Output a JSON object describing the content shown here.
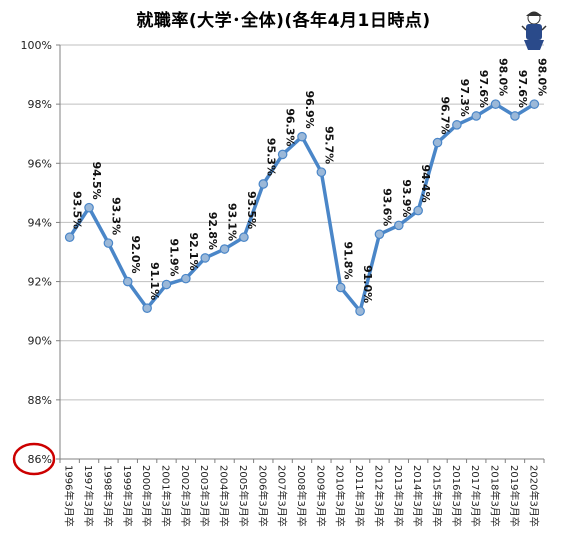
{
  "chart_data": {
    "type": "line",
    "title": "就職率(大学･全体)(各年4月1日時点)",
    "xlabel": "",
    "ylabel": "",
    "ylim": [
      86,
      100
    ],
    "ytick_step": 2,
    "ytick_labels": [
      "86%",
      "88%",
      "90%",
      "92%",
      "94%",
      "96%",
      "98%",
      "100%"
    ],
    "grid": true,
    "legend": "none",
    "axis_break_highlight": "86%",
    "colors": {
      "line": "#4a86c8",
      "marker_fill": "#9bb8d8",
      "marker_stroke": "#4a86c8",
      "highlight": "#cc0000"
    },
    "categories": [
      "1996年3月卒",
      "1997年3月卒",
      "1998年3月卒",
      "1999年3月卒",
      "2000年3月卒",
      "2001年3月卒",
      "2002年3月卒",
      "2003年3月卒",
      "2004年3月卒",
      "2005年3月卒",
      "2006年3月卒",
      "2007年3月卒",
      "2008年3月卒",
      "2009年3月卒",
      "2010年3月卒",
      "2011年3月卒",
      "2012年3月卒",
      "2013年3月卒",
      "2014年3月卒",
      "2015年3月卒",
      "2016年3月卒",
      "2017年3月卒",
      "2018年3月卒",
      "2019年3月卒",
      "2020年3月卒"
    ],
    "values": [
      93.5,
      94.5,
      93.3,
      92.0,
      91.1,
      91.9,
      92.1,
      92.8,
      93.1,
      93.5,
      95.3,
      96.3,
      96.9,
      95.7,
      91.8,
      91.0,
      93.6,
      93.9,
      94.4,
      96.7,
      97.3,
      97.6,
      98.0,
      97.6,
      98.0
    ],
    "data_labels": [
      "93.5%",
      "94.5%",
      "93.3%",
      "92.0%",
      "91.1%",
      "91.9%",
      "92.1%",
      "92.8%",
      "93.1%",
      "93.5%",
      "95.3%",
      "96.3%",
      "96.9%",
      "95.7%",
      "91.8%",
      "91.0%",
      "93.6%",
      "93.9%",
      "94.4%",
      "96.7%",
      "97.3%",
      "97.6%",
      "98.0%",
      "97.6%",
      "98.0%"
    ]
  }
}
